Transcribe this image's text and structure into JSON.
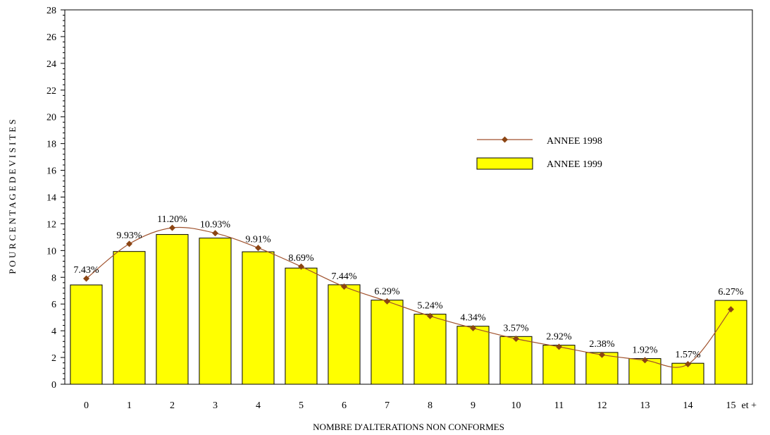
{
  "chart_data": {
    "type": "bar",
    "categories": [
      "0",
      "1",
      "2",
      "3",
      "4",
      "5",
      "6",
      "7",
      "8",
      "9",
      "10",
      "11",
      "12",
      "13",
      "14",
      "15"
    ],
    "x_last_suffix": "et +",
    "series": [
      {
        "name": "ANNEE 1999",
        "type": "bar",
        "values": [
          7.43,
          9.93,
          11.2,
          10.93,
          9.91,
          8.69,
          7.44,
          6.29,
          5.24,
          4.34,
          3.57,
          2.92,
          2.38,
          1.92,
          1.57,
          6.27
        ],
        "labels": [
          "7.43%",
          "9.93%",
          "11.20%",
          "10.93%",
          "9.91%",
          "8.69%",
          "7.44%",
          "6.29%",
          "5.24%",
          "4.34%",
          "3.57%",
          "2.92%",
          "2.38%",
          "1.92%",
          "1.57%",
          "6.27%"
        ]
      },
      {
        "name": "ANNEE 1998",
        "type": "line",
        "values": [
          7.9,
          10.5,
          11.7,
          11.3,
          10.2,
          8.8,
          7.3,
          6.2,
          5.1,
          4.2,
          3.4,
          2.8,
          2.2,
          1.8,
          1.5,
          5.6
        ]
      }
    ],
    "xlabel": "NOMBRE D'ALTERATIONS NON CONFORMES",
    "ylabel": "P O U R C E N T A G E    D E    V I S I T E S",
    "ylim": [
      0,
      28
    ],
    "yticks": [
      "0",
      "2",
      "4",
      "6",
      "8",
      "10",
      "12",
      "14",
      "16",
      "18",
      "20",
      "22",
      "24",
      "26",
      "28"
    ],
    "grid": false,
    "legend_position": "right",
    "colors": {
      "bar_fill": "#FFFF00",
      "bar_stroke": "#000000",
      "line": "#A0522D",
      "marker": "#8B4513"
    }
  }
}
